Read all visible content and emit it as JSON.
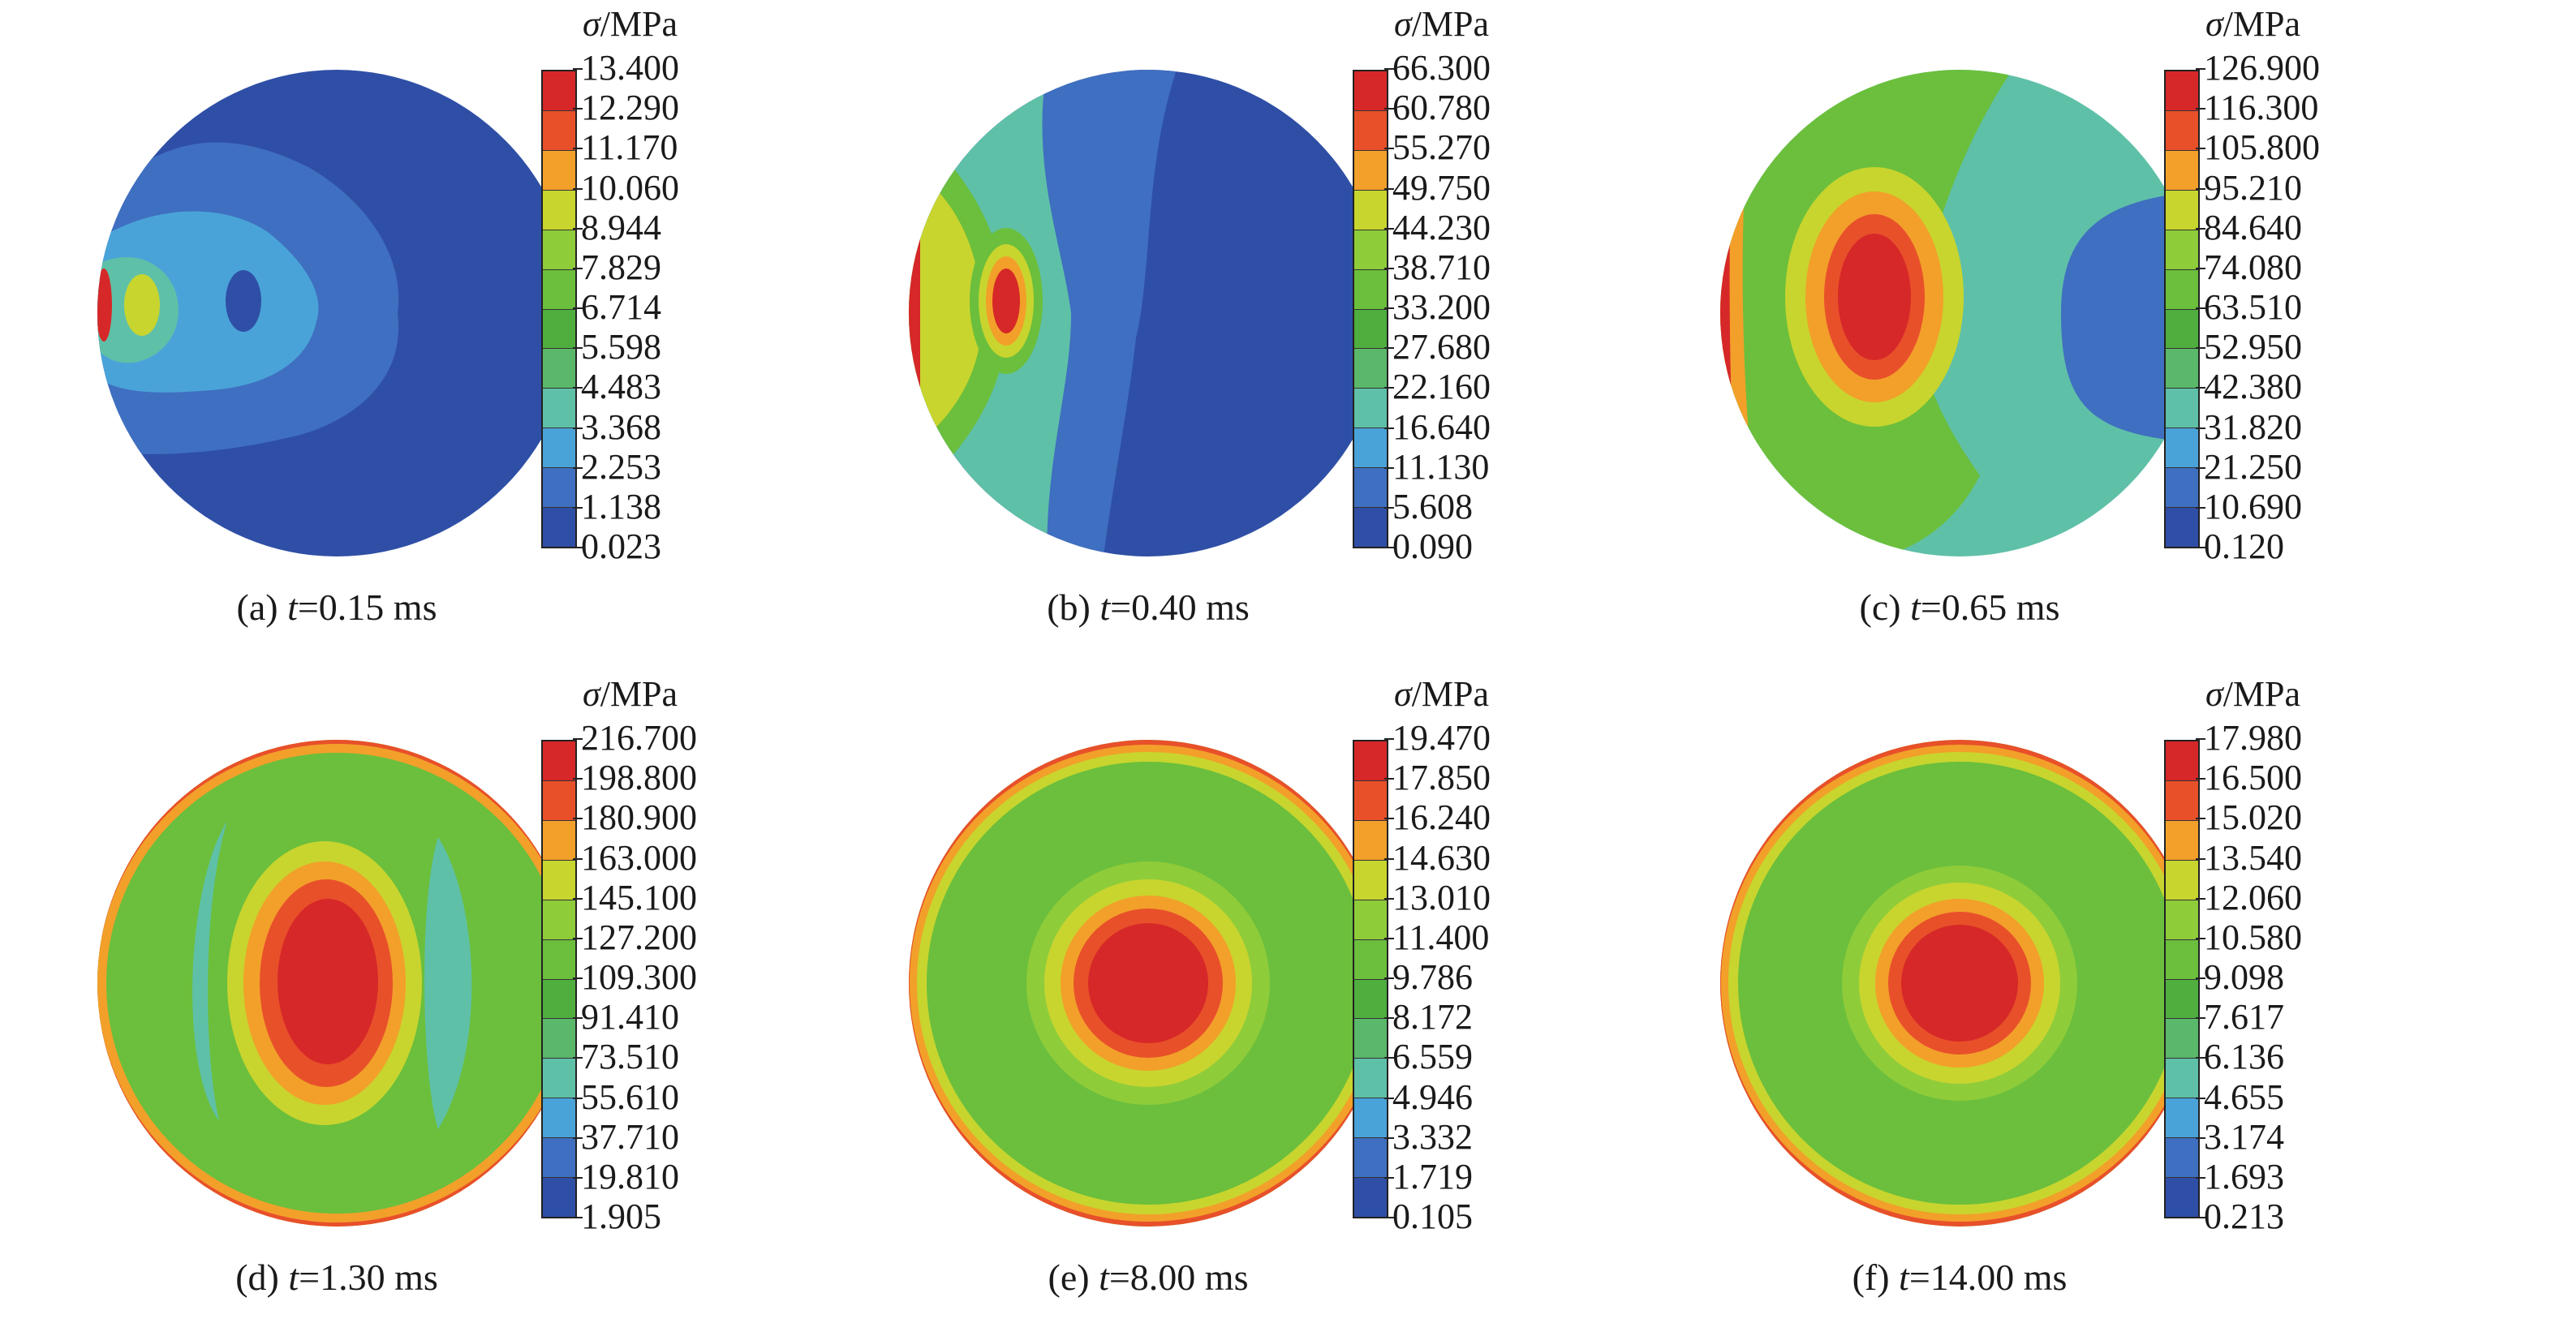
{
  "colorbar_title": {
    "symbol": "σ",
    "unit": "/MPa"
  },
  "colors": {
    "levels": [
      "#d62828",
      "#e8502a",
      "#f2a02a",
      "#c8d52e",
      "#8fcc3a",
      "#6bbf3c",
      "#4fae3e",
      "#5ab86a",
      "#5fc0a8",
      "#4aa3d8",
      "#3f6fc0",
      "#2f4fa6"
    ],
    "panel_fills": {
      "a": [
        "#2f4fa6",
        "#3f6fc0",
        "#4aa3d8",
        "#5fc0a8",
        "#c8d52e",
        "#d62828"
      ],
      "b": [
        "#2f4fa6",
        "#3f6fc0",
        "#4aa3d8",
        "#5fc0a8",
        "#6bbf3c",
        "#c8d52e",
        "#f2a02a",
        "#d62828"
      ],
      "c": [
        "#3f6fc0",
        "#5fc0a8",
        "#6bbf3c",
        "#c8d52e",
        "#f2a02a",
        "#e8502a",
        "#d62828"
      ],
      "d": [
        "#6bbf3c",
        "#5fc0a8",
        "#c8d52e",
        "#f2a02a",
        "#e8502a",
        "#d62828"
      ],
      "e": [
        "#6bbf3c",
        "#8fcc3a",
        "#c8d52e",
        "#f2a02a",
        "#e8502a",
        "#d62828"
      ],
      "f": [
        "#6bbf3c",
        "#8fcc3a",
        "#c8d52e",
        "#f2a02a",
        "#e8502a",
        "#d62828"
      ]
    }
  },
  "panels": [
    {
      "id": "a",
      "caption_prefix": "(a) ",
      "caption_t": "t",
      "caption_value": "=0.15 ms",
      "ticks": [
        "13.400",
        "12.290",
        "11.170",
        "10.060",
        "8.944",
        "7.829",
        "6.714",
        "5.598",
        "4.483",
        "3.368",
        "2.253",
        "1.138",
        "0.023"
      ]
    },
    {
      "id": "b",
      "caption_prefix": "(b) ",
      "caption_t": "t",
      "caption_value": "=0.40 ms",
      "ticks": [
        "66.300",
        "60.780",
        "55.270",
        "49.750",
        "44.230",
        "38.710",
        "33.200",
        "27.680",
        "22.160",
        "16.640",
        "11.130",
        "5.608",
        "0.090"
      ]
    },
    {
      "id": "c",
      "caption_prefix": "(c) ",
      "caption_t": "t",
      "caption_value": "=0.65 ms",
      "ticks": [
        "126.900",
        "116.300",
        "105.800",
        "95.210",
        "84.640",
        "74.080",
        "63.510",
        "52.950",
        "42.380",
        "31.820",
        "21.250",
        "10.690",
        "0.120"
      ]
    },
    {
      "id": "d",
      "caption_prefix": "(d) ",
      "caption_t": "t",
      "caption_value": "=1.30 ms",
      "ticks": [
        "216.700",
        "198.800",
        "180.900",
        "163.000",
        "145.100",
        "127.200",
        "109.300",
        "91.410",
        "73.510",
        "55.610",
        "37.710",
        "19.810",
        "1.905"
      ]
    },
    {
      "id": "e",
      "caption_prefix": "(e) ",
      "caption_t": "t",
      "caption_value": "=8.00 ms",
      "ticks": [
        "19.470",
        "17.850",
        "16.240",
        "14.630",
        "13.010",
        "11.400",
        "9.786",
        "8.172",
        "6.559",
        "4.946",
        "3.332",
        "1.719",
        "0.105"
      ]
    },
    {
      "id": "f",
      "caption_prefix": "(f) ",
      "caption_t": "t",
      "caption_value": "=14.00 ms",
      "ticks": [
        "17.980",
        "16.500",
        "15.020",
        "13.540",
        "12.060",
        "10.580",
        "9.098",
        "7.617",
        "6.136",
        "4.655",
        "3.174",
        "1.693",
        "0.213"
      ]
    }
  ]
}
